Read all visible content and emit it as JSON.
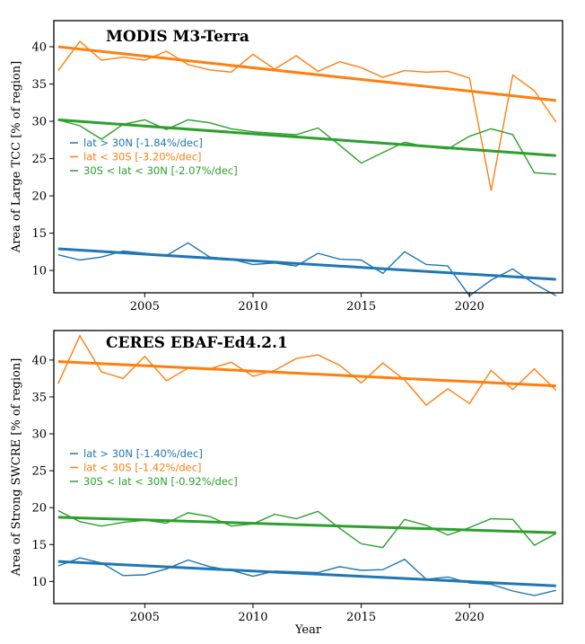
{
  "chart_data": [
    {
      "type": "line",
      "title": "MODIS M3-Terra",
      "xlabel": "",
      "ylabel": "Area of Large TCC [% of region]",
      "xlim": [
        2000.8,
        2024.3
      ],
      "ylim": [
        7,
        43.5
      ],
      "xticks": [
        2005,
        2010,
        2015,
        2020
      ],
      "yticks": [
        10,
        15,
        20,
        25,
        30,
        35,
        40
      ],
      "grid": false,
      "legend_position": "center-left",
      "x": [
        2001,
        2002,
        2003,
        2004,
        2005,
        2006,
        2007,
        2008,
        2009,
        2010,
        2011,
        2012,
        2013,
        2014,
        2015,
        2016,
        2017,
        2018,
        2019,
        2020,
        2021,
        2022,
        2023,
        2024
      ],
      "series": [
        {
          "name": "lat > 30N [-1.84%/dec]",
          "color": "#1f77b4",
          "values": [
            12.1,
            11.4,
            11.8,
            12.6,
            12.3,
            12.0,
            13.7,
            11.8,
            11.5,
            10.8,
            11.0,
            10.6,
            12.3,
            11.5,
            11.4,
            9.6,
            12.5,
            10.8,
            10.6,
            6.6,
            8.7,
            10.2,
            8.2,
            6.6
          ],
          "trend": [
            12.9,
            8.8
          ]
        },
        {
          "name": "lat < 30S [-3.20%/dec]",
          "color": "#ff7f0e",
          "values": [
            36.8,
            40.7,
            38.2,
            38.6,
            38.2,
            39.4,
            37.6,
            36.9,
            36.6,
            39.0,
            37.0,
            38.8,
            36.7,
            38.0,
            37.2,
            35.9,
            36.8,
            36.6,
            36.7,
            35.8,
            20.7,
            36.2,
            34.1,
            29.9
          ],
          "trend": [
            40.0,
            32.8
          ]
        },
        {
          "name": "30S < lat < 30N [-2.07%/dec]",
          "color": "#2ca02c",
          "values": [
            30.2,
            29.4,
            27.6,
            29.6,
            30.2,
            28.9,
            30.2,
            29.8,
            29.0,
            28.6,
            28.4,
            28.2,
            29.1,
            26.8,
            24.4,
            25.8,
            27.2,
            26.6,
            26.3,
            28.0,
            29.0,
            28.2,
            23.1,
            22.9
          ],
          "trend": [
            30.2,
            25.4
          ]
        }
      ]
    },
    {
      "type": "line",
      "title": "CERES EBAF-Ed4.2.1",
      "xlabel": "Year",
      "ylabel": "Area of Strong SWCRE [% of region]",
      "xlim": [
        2000.8,
        2024.3
      ],
      "ylim": [
        7,
        44
      ],
      "xticks": [
        2005,
        2010,
        2015,
        2020
      ],
      "yticks": [
        10,
        15,
        20,
        25,
        30,
        35,
        40
      ],
      "grid": false,
      "legend_position": "center-left",
      "x": [
        2001,
        2002,
        2003,
        2004,
        2005,
        2006,
        2007,
        2008,
        2009,
        2010,
        2011,
        2012,
        2013,
        2014,
        2015,
        2016,
        2017,
        2018,
        2019,
        2020,
        2021,
        2022,
        2023,
        2024
      ],
      "series": [
        {
          "name": "lat > 30N [-1.40%/dec]",
          "color": "#1f77b4",
          "values": [
            12.1,
            13.2,
            12.5,
            10.8,
            10.9,
            11.7,
            12.9,
            12.0,
            11.5,
            10.7,
            11.4,
            11.3,
            11.2,
            12.0,
            11.5,
            11.6,
            13.0,
            10.3,
            10.6,
            9.8,
            9.6,
            8.7,
            8.1,
            8.8
          ],
          "trend": [
            12.7,
            9.4
          ]
        },
        {
          "name": "lat < 30S [-1.42%/dec]",
          "color": "#ff7f0e",
          "values": [
            36.8,
            43.3,
            38.4,
            37.5,
            40.5,
            37.2,
            38.9,
            38.8,
            39.7,
            37.8,
            38.6,
            40.2,
            40.7,
            39.3,
            36.9,
            39.6,
            37.3,
            33.9,
            36.1,
            34.1,
            38.6,
            36.0,
            38.8,
            35.9
          ],
          "trend": [
            39.8,
            36.5
          ]
        },
        {
          "name": "30S < lat < 30N [-0.92%/dec]",
          "color": "#2ca02c",
          "values": [
            19.6,
            18.1,
            17.5,
            18.0,
            18.3,
            17.9,
            19.3,
            18.8,
            17.5,
            17.8,
            19.1,
            18.5,
            19.5,
            17.2,
            15.1,
            14.6,
            18.4,
            17.6,
            16.3,
            17.3,
            18.5,
            18.4,
            14.9,
            16.5
          ],
          "trend": [
            18.7,
            16.6
          ]
        }
      ]
    }
  ]
}
